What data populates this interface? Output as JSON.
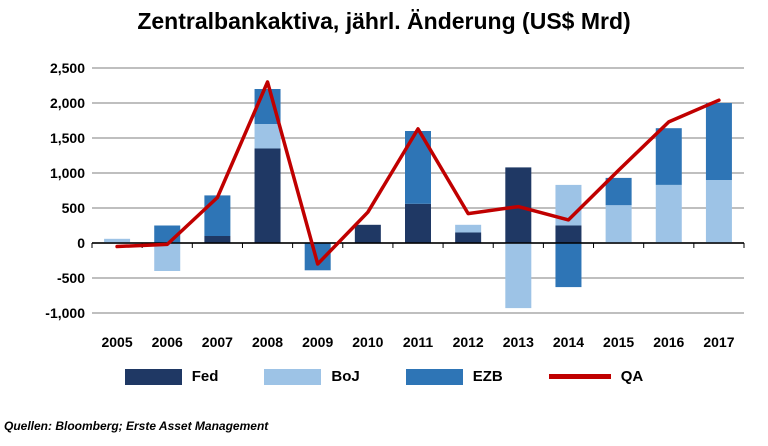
{
  "title": "Zentralbankaktiva, jährl. Änderung (US$ Mrd)",
  "footnote": "Quellen: Bloomberg; Erste Asset Management",
  "colors": {
    "fed": "#1F3864",
    "boj": "#9DC3E6",
    "ezb": "#2E75B6",
    "line": "#C00000",
    "gridline": "#BFBFBF",
    "axis": "#000000",
    "background": "#FFFFFF"
  },
  "chart_data": {
    "type": "bar",
    "subtype": "stacked-bars-with-line",
    "title": "Zentralbankaktiva, jährl. Änderung (US$ Mrd)",
    "xlabel": "",
    "ylabel": "",
    "ylim": [
      -1000,
      2500
    ],
    "yticks": [
      2500,
      2000,
      1500,
      1000,
      500,
      0,
      -500,
      -1000
    ],
    "grid": true,
    "legend_position": "bottom",
    "categories": [
      "2005",
      "2006",
      "2007",
      "2008",
      "2009",
      "2010",
      "2011",
      "2012",
      "2013",
      "2014",
      "2015",
      "2016",
      "2017"
    ],
    "series": [
      {
        "name": "Fed",
        "color": "#1F3864",
        "values": [
          0,
          0,
          100,
          1350,
          0,
          260,
          560,
          150,
          1080,
          250,
          0,
          0,
          0
        ]
      },
      {
        "name": "BoJ",
        "color": "#9DC3E6",
        "values": [
          60,
          -400,
          0,
          350,
          0,
          0,
          0,
          110,
          -930,
          580,
          540,
          830,
          900
        ]
      },
      {
        "name": "EZB",
        "color": "#2E75B6",
        "values": [
          0,
          250,
          580,
          500,
          -390,
          0,
          1040,
          0,
          0,
          -630,
          390,
          810,
          1100
        ]
      }
    ],
    "line_series": {
      "name": "QA",
      "color": "#C00000",
      "values": [
        -50,
        -20,
        650,
        2300,
        -300,
        440,
        1630,
        420,
        520,
        330,
        1040,
        1730,
        2040
      ]
    }
  },
  "legend": {
    "items": [
      {
        "label": "Fed",
        "swatch": "box"
      },
      {
        "label": "BoJ",
        "swatch": "box"
      },
      {
        "label": "EZB",
        "swatch": "box"
      },
      {
        "label": "QA",
        "swatch": "line"
      }
    ]
  }
}
